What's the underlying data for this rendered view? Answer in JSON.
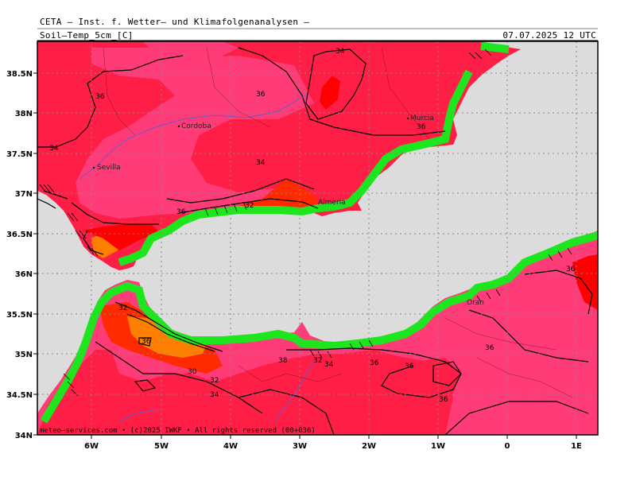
{
  "header": {
    "title": "CETA — Inst. f. Wetter— und Klimafolgenanalysen —",
    "parameter": "Soil—Temp_5cm_[C]",
    "valid_time": "07.07.2025 12 UTC"
  },
  "axes": {
    "lat_labels": [
      "38.5N",
      "38N",
      "37.5N",
      "37N",
      "36.5N",
      "36N",
      "35.5N",
      "35N",
      "34.5N",
      "34N"
    ],
    "lon_labels": [
      "6W",
      "5W",
      "4W",
      "3W",
      "2W",
      "1W",
      "0",
      "1E"
    ]
  },
  "cities": {
    "cordoba": "Cordoba",
    "sevilla": "Sevilla",
    "murcia": "Murcia",
    "almeria": "Almeria",
    "oran": "Oran"
  },
  "contour_labels": {
    "c1": "34",
    "c2": "36",
    "c3": "36",
    "c4": "34",
    "c5": "34",
    "c6": "36",
    "c7": "36",
    "c8": "32",
    "c9": "32",
    "c10": "30",
    "c11": "32",
    "c12": "34",
    "c13": "38",
    "c14": "32",
    "c15": "34",
    "c16": "36",
    "c17": "36",
    "c18": "36",
    "c19": "36",
    "c20": "36",
    "c21": "36"
  },
  "footer": {
    "copyright": "meteo—services.com • (c)2025 IWKF • All rights reserved (00+036)"
  },
  "colors": {
    "sea": "#dcdcdc",
    "land_border_green": "#1ee61e",
    "temp_30_32": "#ff8000",
    "temp_32_34": "#ff2a00",
    "temp_34_36": "#ff1e46",
    "temp_36_38": "#ff3c78",
    "temp_38_plus": "#ff0000"
  }
}
